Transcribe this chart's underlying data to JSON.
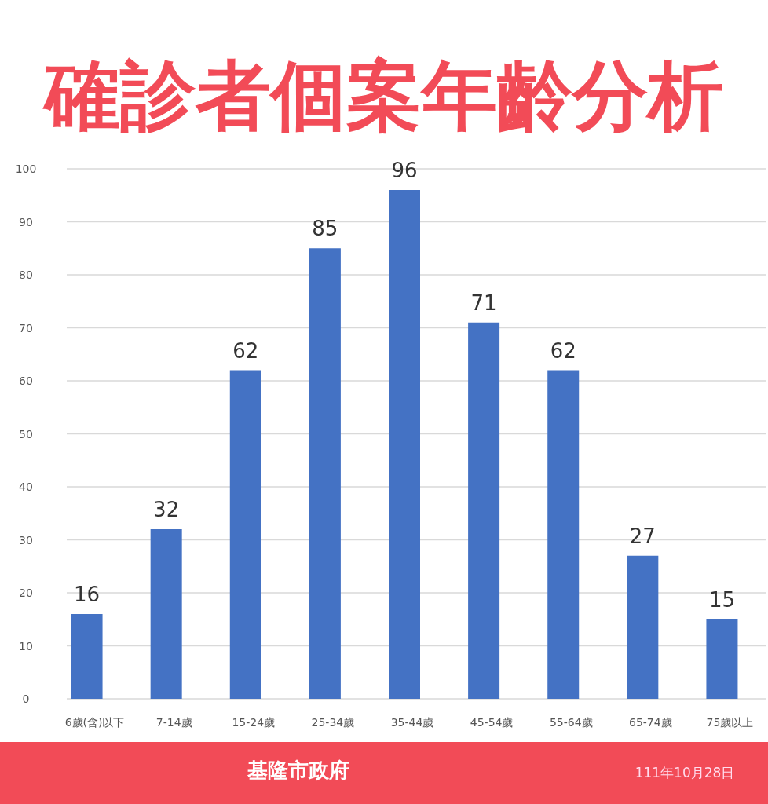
{
  "chart_data": {
    "type": "bar",
    "title": "確診者個案年齡分析",
    "categories": [
      "6歲(含)以下",
      "7-14歲",
      "15-24歲",
      "25-34歲",
      "35-44歲",
      "45-54歲",
      "55-64歲",
      "65-74歲",
      "75歲以上"
    ],
    "values": [
      16,
      32,
      62,
      85,
      96,
      71,
      62,
      27,
      15
    ],
    "color": "#4472c4",
    "ylim": [
      0,
      100
    ],
    "yticks": [
      0,
      10,
      20,
      30,
      40,
      50,
      60,
      70,
      80,
      90,
      100
    ],
    "grid": "y",
    "data_labels": true,
    "annotations": [
      "基隆市政府",
      "111年10月28日"
    ]
  }
}
